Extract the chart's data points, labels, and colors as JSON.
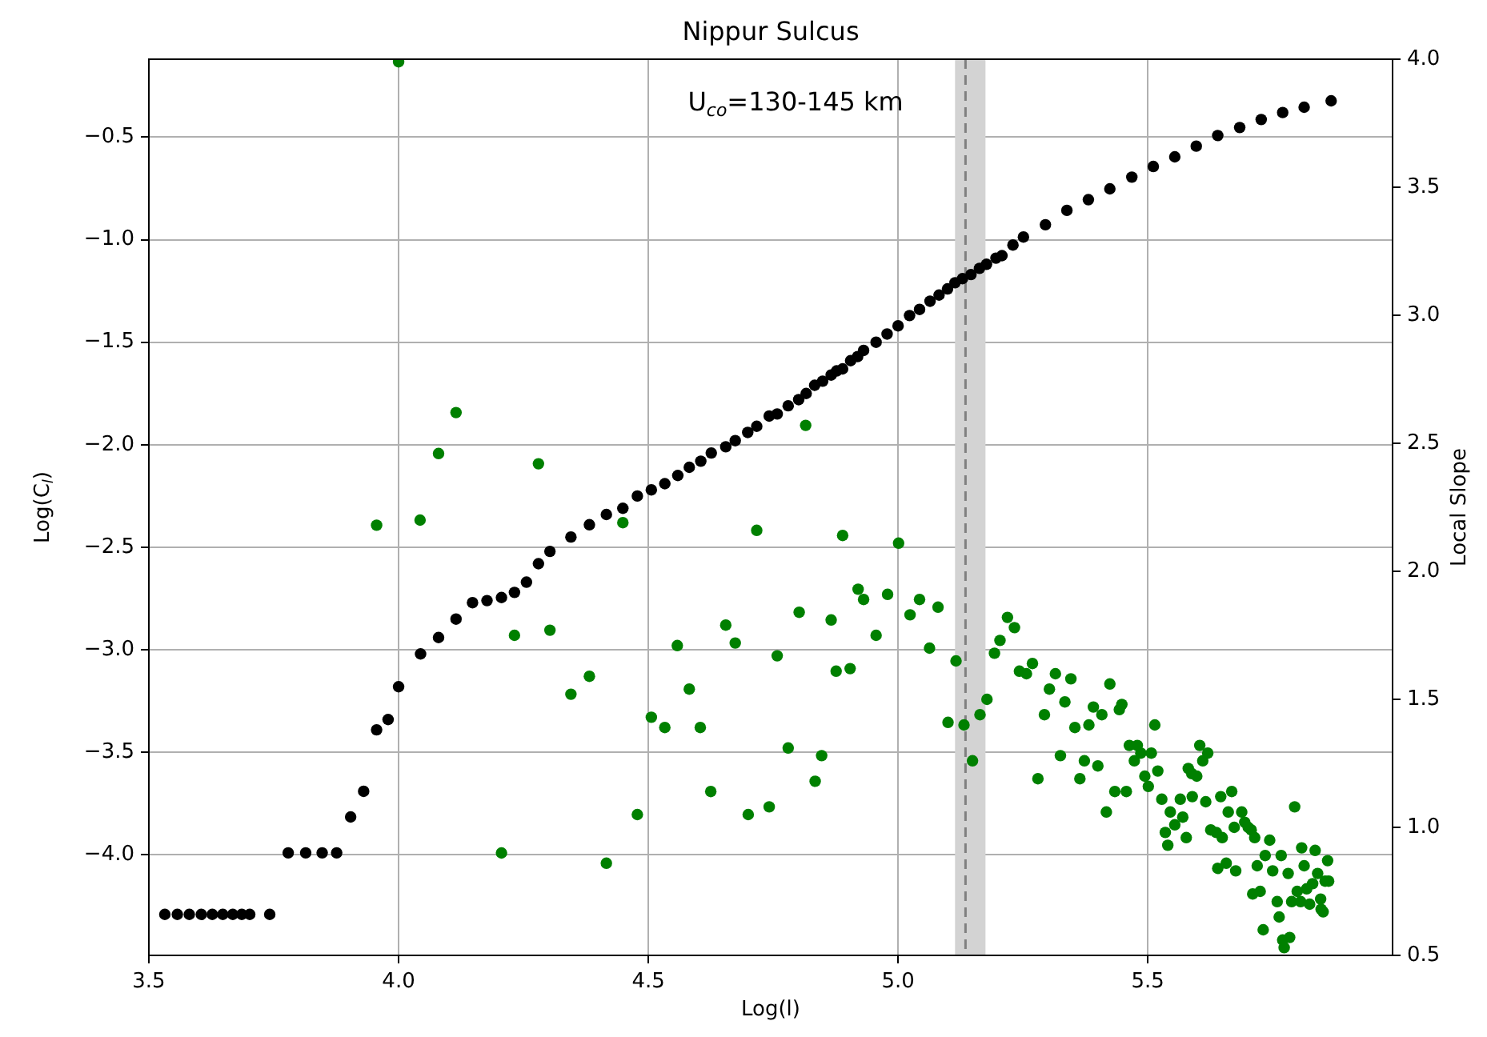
{
  "chart_data": {
    "type": "scatter",
    "title": "Nippur Sulcus",
    "xlabel": "Log(l)",
    "ylabel": "Log(C$_{l}$)",
    "y2label": "Local Slope",
    "annotations": [
      "U$_{co}$=130-145 km"
    ],
    "marker": "circle",
    "grid": true,
    "xlim": [
      3.5,
      5.99
    ],
    "xticks": [
      3.5,
      {
        "value": 4,
        "label": "4.0"
      },
      4.5,
      {
        "value": 5,
        "label": "5.0"
      },
      5.5
    ],
    "ylim": [
      -4.49,
      -0.12
    ],
    "yticks": [
      {
        "value": -0.5,
        "label": "−0.5"
      },
      {
        "value": -1,
        "label": "−1.0"
      },
      {
        "value": -1.5,
        "label": "−1.5"
      },
      {
        "value": -2,
        "label": "−2.0"
      },
      {
        "value": -2.5,
        "label": "−2.5"
      },
      {
        "value": -3,
        "label": "−3.0"
      },
      {
        "value": -3.5,
        "label": "−3.5"
      },
      {
        "value": -4,
        "label": "−4.0"
      }
    ],
    "y2lim": [
      0.5,
      4.0
    ],
    "y2ticks": [
      0.5,
      {
        "value": 1,
        "label": "1.0"
      },
      1.5,
      {
        "value": 2,
        "label": "2.0"
      },
      2.5,
      {
        "value": 3,
        "label": "3.0"
      },
      3.5,
      {
        "value": 4,
        "label": "4.0"
      }
    ],
    "ref_lines": [
      {
        "axis": "x",
        "value": 5.135,
        "color": "#808080",
        "line_style": "dashed"
      }
    ],
    "bands": [
      {
        "axis": "x",
        "from": 5.114,
        "to": 5.175,
        "color": "#d3d3d3"
      }
    ],
    "series": [
      {
        "type": "scatter",
        "color": "#000000",
        "x": [
          3.532,
          3.557,
          3.581,
          3.605,
          3.627,
          3.648,
          3.668,
          3.686,
          3.702,
          3.742,
          3.779,
          3.814,
          3.847,
          3.876,
          3.904,
          3.93,
          3.956,
          3.979,
          4.0,
          4.044,
          4.08,
          4.115,
          4.148,
          4.177,
          4.206,
          4.232,
          4.256,
          4.28,
          4.303,
          4.345,
          4.382,
          4.416,
          4.449,
          4.478,
          4.506,
          4.533,
          4.559,
          4.582,
          4.605,
          4.626,
          4.655,
          4.674,
          4.699,
          4.717,
          4.742,
          4.758,
          4.78,
          4.801,
          4.816,
          4.833,
          4.849,
          4.866,
          4.877,
          4.889,
          4.905,
          4.919,
          4.931,
          4.956,
          4.978,
          5.0,
          5.023,
          5.043,
          5.064,
          5.082,
          5.099,
          5.114,
          5.129,
          5.146,
          5.163,
          5.177,
          5.196,
          5.208,
          5.23,
          5.251,
          5.295,
          5.338,
          5.381,
          5.424,
          5.468,
          5.511,
          5.554,
          5.597,
          5.64,
          5.684,
          5.727,
          5.77,
          5.813,
          5.867
        ],
        "values": [
          -4.29,
          -4.29,
          -4.29,
          -4.29,
          -4.29,
          -4.29,
          -4.29,
          -4.29,
          -4.29,
          -4.29,
          -3.99,
          -3.99,
          -3.99,
          -3.99,
          -3.815,
          -3.69,
          -3.39,
          -3.34,
          -3.18,
          -3.02,
          -2.94,
          -2.85,
          -2.77,
          -2.76,
          -2.745,
          -2.72,
          -2.67,
          -2.58,
          -2.52,
          -2.45,
          -2.39,
          -2.34,
          -2.31,
          -2.25,
          -2.22,
          -2.19,
          -2.15,
          -2.11,
          -2.08,
          -2.04,
          -2.01,
          -1.98,
          -1.94,
          -1.91,
          -1.86,
          -1.85,
          -1.81,
          -1.78,
          -1.75,
          -1.71,
          -1.69,
          -1.66,
          -1.64,
          -1.63,
          -1.59,
          -1.57,
          -1.54,
          -1.5,
          -1.46,
          -1.42,
          -1.37,
          -1.34,
          -1.3,
          -1.27,
          -1.24,
          -1.21,
          -1.19,
          -1.17,
          -1.14,
          -1.12,
          -1.09,
          -1.078,
          -1.026,
          -0.987,
          -0.927,
          -0.857,
          -0.805,
          -0.752,
          -0.695,
          -0.643,
          -0.596,
          -0.544,
          -0.492,
          -0.453,
          -0.414,
          -0.38,
          -0.354,
          -0.323
        ]
      },
      {
        "type": "scatter",
        "color": "#008000",
        "axis": "y2",
        "x": [
          3.956,
          4.0,
          4.043,
          4.08,
          4.115,
          4.206,
          4.232,
          4.28,
          4.303,
          4.345,
          4.382,
          4.416,
          4.449,
          4.478,
          4.506,
          4.533,
          4.558,
          4.582,
          4.604,
          4.625,
          4.655,
          4.674,
          4.7,
          4.717,
          4.742,
          4.758,
          4.78,
          4.802,
          4.815,
          4.834,
          4.847,
          4.866,
          4.876,
          4.889,
          4.904,
          4.92,
          4.931,
          4.956,
          4.979,
          5.001,
          5.024,
          5.043,
          5.063,
          5.08,
          5.1,
          5.116,
          5.132,
          5.149,
          5.164,
          5.178,
          5.193,
          5.204,
          5.219,
          5.233,
          5.243,
          5.257,
          5.269,
          5.28,
          5.293,
          5.303,
          5.315,
          5.325,
          5.334,
          5.346,
          5.354,
          5.364,
          5.373,
          5.382,
          5.391,
          5.4,
          5.408,
          5.417,
          5.424,
          5.434,
          5.443,
          5.448,
          5.457,
          5.463,
          5.473,
          5.479,
          5.486,
          5.494,
          5.501,
          5.507,
          5.514,
          5.52,
          5.528,
          5.535,
          5.54,
          5.545,
          5.554,
          5.565,
          5.57,
          5.577,
          5.581,
          5.588,
          5.589,
          5.598,
          5.604,
          5.61,
          5.616,
          5.62,
          5.626,
          5.637,
          5.64,
          5.646,
          5.649,
          5.657,
          5.661,
          5.668,
          5.673,
          5.676,
          5.688,
          5.694,
          5.701,
          5.707,
          5.71,
          5.714,
          5.719,
          5.725,
          5.731,
          5.735,
          5.744,
          5.75,
          5.759,
          5.763,
          5.767,
          5.77,
          5.773,
          5.781,
          5.784,
          5.788,
          5.794,
          5.799,
          5.806,
          5.808,
          5.813,
          5.818,
          5.824,
          5.83,
          5.835,
          5.84,
          5.846,
          5.847,
          5.851,
          5.855,
          5.86,
          5.862
        ],
        "values": [
          2.18,
          3.99,
          2.2,
          2.46,
          2.62,
          0.9,
          1.75,
          2.42,
          1.77,
          1.52,
          1.59,
          0.86,
          2.19,
          1.05,
          1.43,
          1.39,
          1.71,
          1.54,
          1.39,
          1.14,
          1.79,
          1.72,
          1.05,
          2.16,
          1.08,
          1.67,
          1.31,
          1.84,
          2.57,
          1.18,
          1.28,
          1.81,
          1.61,
          2.14,
          1.62,
          1.93,
          1.89,
          1.75,
          1.91,
          2.11,
          1.83,
          1.89,
          1.7,
          1.86,
          1.41,
          1.65,
          1.4,
          1.26,
          1.44,
          1.5,
          1.68,
          1.73,
          1.82,
          1.78,
          1.61,
          1.6,
          1.64,
          1.19,
          1.44,
          1.54,
          1.6,
          1.28,
          1.49,
          1.58,
          1.39,
          1.19,
          1.26,
          1.4,
          1.47,
          1.24,
          1.44,
          1.06,
          1.56,
          1.14,
          1.46,
          1.48,
          1.14,
          1.32,
          1.26,
          1.32,
          1.29,
          1.2,
          1.16,
          1.29,
          1.4,
          1.22,
          1.11,
          0.98,
          0.93,
          1.06,
          1.01,
          1.11,
          1.04,
          0.96,
          1.23,
          1.21,
          1.12,
          1.2,
          1.32,
          1.26,
          1.1,
          1.29,
          0.99,
          0.98,
          0.84,
          1.12,
          0.96,
          0.86,
          1.06,
          1.14,
          1.0,
          0.83,
          1.06,
          1.02,
          1.0,
          0.99,
          0.74,
          0.96,
          0.85,
          0.75,
          0.6,
          0.89,
          0.95,
          0.83,
          0.71,
          0.65,
          0.89,
          0.56,
          0.53,
          0.82,
          0.57,
          0.71,
          1.08,
          0.75,
          0.71,
          0.92,
          0.85,
          0.76,
          0.7,
          0.78,
          0.91,
          0.82,
          0.72,
          0.68,
          0.67,
          0.79,
          0.87,
          0.79
        ]
      }
    ]
  }
}
